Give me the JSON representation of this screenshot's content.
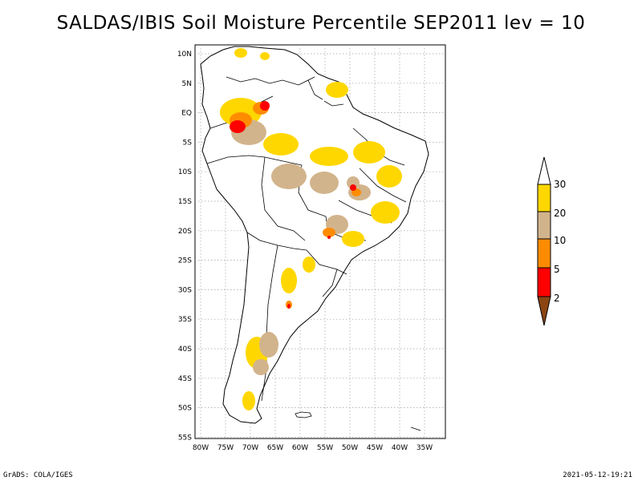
{
  "title": "SALDAS/IBIS Soil Moisture Percentile SEP2011 lev = 10",
  "footer_left": "GrADS: COLA/IGES",
  "footer_right": "2021-05-12-19:21",
  "lat_labels": [
    "10N",
    "5N",
    "EQ",
    "5S",
    "10S",
    "15S",
    "20S",
    "25S",
    "30S",
    "35S",
    "40S",
    "45S",
    "50S",
    "55S"
  ],
  "lon_labels": [
    "80W",
    "75W",
    "70W",
    "65W",
    "60W",
    "55W",
    "50W",
    "45W",
    "40W",
    "35W"
  ],
  "colorbar": {
    "labels": [
      "30",
      "20",
      "10",
      "5",
      "2"
    ],
    "colors": {
      "above": "#ffffff",
      "20-30": "#ffd700",
      "10-20": "#d2b48c",
      "5-10": "#ff8c00",
      "2-5": "#ff0000",
      "below": "#8b4513"
    }
  },
  "colors": {
    "coast": "#000000",
    "grid": "#a0a0a0"
  }
}
